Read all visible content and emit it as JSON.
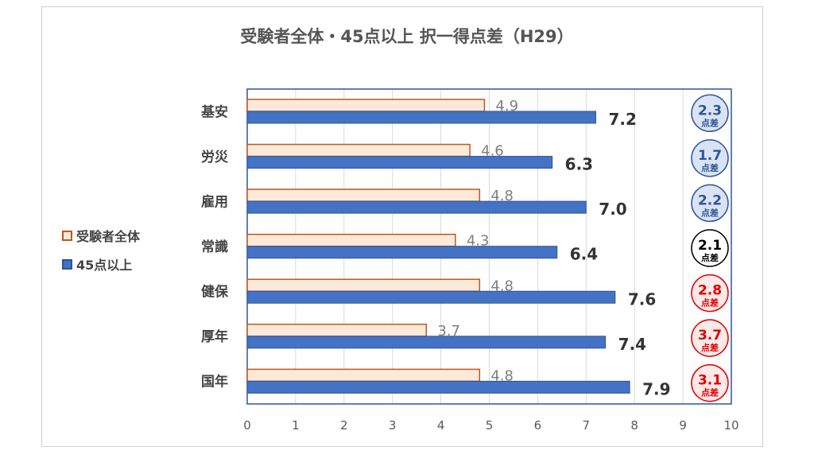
{
  "chart_data": {
    "type": "bar",
    "orientation": "horizontal",
    "title": "受験者全体・45点以上 択一得点差（H29）",
    "categories": [
      "基安",
      "労災",
      "雇用",
      "常識",
      "健保",
      "厚年",
      "国年"
    ],
    "series": [
      {
        "name": "受験者全体",
        "values": [
          4.9,
          4.6,
          4.8,
          4.3,
          4.8,
          3.7,
          4.8
        ],
        "fill": "#fde9d9",
        "stroke": "#b85a1f"
      },
      {
        "name": "45点以上",
        "values": [
          7.2,
          6.3,
          7.0,
          6.4,
          7.6,
          7.4,
          7.9
        ],
        "fill": "#4472c4",
        "stroke": "#2f5597"
      }
    ],
    "xlim": [
      0,
      10
    ],
    "xticks": [
      "0",
      "1",
      "2",
      "3",
      "4",
      "5",
      "6",
      "7",
      "8",
      "9",
      "10"
    ],
    "grid": "vertical",
    "legend": "left",
    "badges": [
      {
        "value": "2.3",
        "unit": "点差",
        "color": "#2f5597",
        "fill": "#dae3f3"
      },
      {
        "value": "1.7",
        "unit": "点差",
        "color": "#2f5597",
        "fill": "#dae3f3"
      },
      {
        "value": "2.2",
        "unit": "点差",
        "color": "#2f5597",
        "fill": "#dae3f3"
      },
      {
        "value": "2.1",
        "unit": "点差",
        "color": "#000000",
        "fill": "#ffffff"
      },
      {
        "value": "2.8",
        "unit": "点差",
        "color": "#e00000",
        "fill": "#fde9e9"
      },
      {
        "value": "3.7",
        "unit": "点差",
        "color": "#e00000",
        "fill": "#fde9e9"
      },
      {
        "value": "3.1",
        "unit": "点差",
        "color": "#e00000",
        "fill": "#fde9e9"
      }
    ]
  }
}
